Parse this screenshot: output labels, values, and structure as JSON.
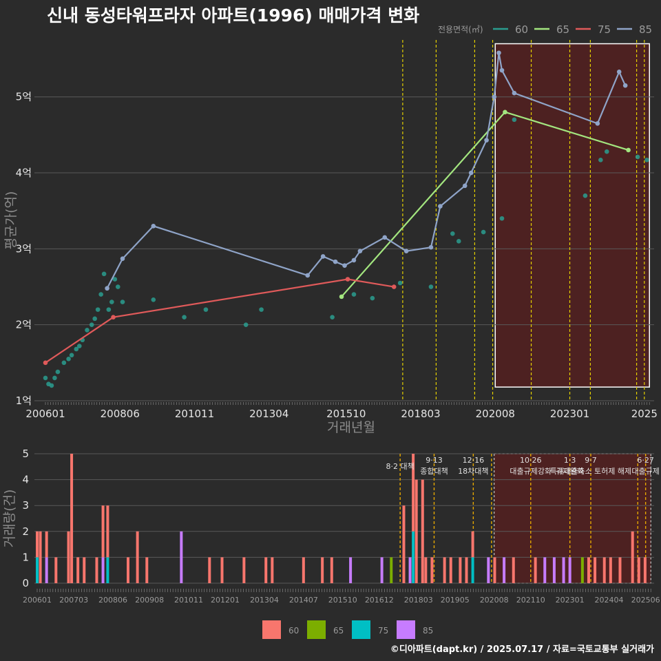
{
  "title": "신내 동성타워프라자 아파트(1996) 매매가격 변화",
  "source": "©디아파트(dapt.kr) / 2025.07.17 / 자료=국토교통부 실거래가",
  "colors": {
    "background": "#2b2b2b",
    "grid": "#5a5a5a",
    "s60": "#f8766d",
    "s65": "#7cae00",
    "s75": "#00bfc4",
    "s85": "#c77cff",
    "line60": "#2a9d8f",
    "line65": "#a3e67f",
    "line75": "#e05a5a",
    "line85": "#8fa4c8",
    "policy": "#e6d200",
    "policy_bottom": "#e6a800",
    "highlight_fill": "#5a1f1f"
  },
  "chart_data": [
    {
      "type": "line",
      "name": "price",
      "xlabel": "거래년월",
      "ylabel": "평균가(억)",
      "ylim": [
        1,
        5.75
      ],
      "yticks": [
        1,
        2,
        3,
        4,
        5
      ],
      "ytick_labels": [
        "1억",
        "2억",
        "3억",
        "4억",
        "5억"
      ],
      "xticks": [
        "200601",
        "200806",
        "201011",
        "201304",
        "201510",
        "201803",
        "202008",
        "202301",
        "202506"
      ],
      "xtick_labels": [
        "200601",
        "200806",
        "201011",
        "201304",
        "201510",
        "201803",
        "202008",
        "202301",
        "2025"
      ],
      "legend_title": "전용면적(㎡)",
      "legend": [
        "60",
        "65",
        "75",
        "85"
      ],
      "highlight": {
        "x0": "2020.08",
        "x1": "2025.08",
        "ymin": 1.18,
        "ymax": 5.7
      },
      "policy_lines": [
        "2017.08",
        "2018.09",
        "2019.12",
        "2020.07",
        "2021.10",
        "2023.01",
        "2023.09",
        "2025.03",
        "2025.06"
      ],
      "series": [
        {
          "name": "60",
          "x": [
            2006.0,
            2006.1,
            2006.2,
            2006.3,
            2006.4,
            2006.6,
            2006.75,
            2006.85,
            2007.0,
            2007.1,
            2007.2,
            2007.35,
            2007.5,
            2007.6,
            2007.7,
            2007.8,
            2007.9,
            2008.05,
            2008.15,
            2008.25,
            2008.35,
            2008.5,
            2009.5,
            2010.5,
            2011.2,
            2012.5,
            2013.0,
            2015.3,
            2016.0,
            2016.6,
            2017.5,
            2018.5,
            2019.2,
            2019.4,
            2020.2,
            2020.8,
            2021.2,
            2023.5,
            2024.0,
            2024.2,
            2025.2,
            2025.5
          ],
          "y": [
            1.3,
            1.22,
            1.2,
            1.3,
            1.38,
            1.5,
            1.55,
            1.6,
            1.68,
            1.72,
            1.8,
            1.93,
            2.0,
            2.08,
            2.2,
            2.4,
            2.67,
            2.2,
            2.3,
            2.6,
            2.5,
            2.3,
            2.33,
            2.1,
            2.2,
            2.0,
            2.2,
            2.1,
            2.4,
            2.35,
            2.55,
            2.5,
            3.2,
            3.1,
            3.22,
            3.4,
            4.7,
            3.7,
            4.17,
            4.28,
            4.21,
            4.17
          ]
        },
        {
          "name": "65",
          "x": [
            2015.6,
            2020.9,
            2024.9
          ],
          "y": [
            2.37,
            4.8,
            4.3
          ]
        },
        {
          "name": "75",
          "x": [
            2006.0,
            2008.2,
            2015.8,
            2017.3
          ],
          "y": [
            1.5,
            2.1,
            2.6,
            2.5
          ]
        },
        {
          "name": "85",
          "x": [
            2008.0,
            2008.5,
            2009.5,
            2014.5,
            2015.0,
            2015.4,
            2015.7,
            2016.0,
            2016.2,
            2017.0,
            2017.7,
            2018.5,
            2018.8,
            2019.6,
            2019.8,
            2020.3,
            2020.55,
            2020.7,
            2020.8,
            2021.2,
            2023.9,
            2024.6,
            2024.8
          ],
          "y": [
            2.48,
            2.87,
            3.3,
            2.65,
            2.9,
            2.83,
            2.78,
            2.85,
            2.97,
            3.15,
            2.97,
            3.02,
            3.56,
            3.83,
            4.0,
            4.43,
            5.0,
            5.58,
            5.35,
            5.05,
            4.65,
            5.33,
            5.15
          ]
        }
      ]
    },
    {
      "type": "bar",
      "name": "volume",
      "xlabel": "",
      "ylabel": "거래량(건)",
      "ylim": [
        0,
        5
      ],
      "yticks": [
        0,
        1,
        2,
        3,
        4,
        5
      ],
      "xtick_labels": [
        "200601",
        "200703",
        "200806",
        "200908",
        "201011",
        "201201",
        "201304",
        "201407",
        "201510",
        "201612",
        "201803",
        "201905",
        "202008",
        "202110",
        "202301",
        "202404",
        "202506"
      ],
      "legend": [
        "60",
        "65",
        "75",
        "85"
      ],
      "annotations": [
        {
          "x": "2017.08",
          "lines": [
            "8·2 대책"
          ]
        },
        {
          "x": "2018.09",
          "lines": [
            "9·13",
            "종합대책"
          ]
        },
        {
          "x": "2019.12",
          "lines": [
            "12·16",
            "18차대책"
          ]
        },
        {
          "x": "2021.10",
          "lines": [
            "10·26",
            "대출규제강화"
          ]
        },
        {
          "x": "2023.01",
          "lines": [
            "1·3",
            "규제완화"
          ]
        },
        {
          "x": "2023.09",
          "lines": [
            "9·7",
            "특례대출축소 토허제 해제"
          ]
        },
        {
          "x": "2025.06",
          "lines": [
            "6·27",
            "대출규제"
          ]
        }
      ],
      "bars": [
        {
          "x": 2006.0,
          "s60": 1,
          "s75": 1
        },
        {
          "x": 2006.1,
          "s60": 2
        },
        {
          "x": 2006.3,
          "s60": 1,
          "s85": 1
        },
        {
          "x": 2006.6,
          "s60": 1
        },
        {
          "x": 2007.0,
          "s60": 2
        },
        {
          "x": 2007.1,
          "s60": 5
        },
        {
          "x": 2007.3,
          "s60": 1
        },
        {
          "x": 2007.5,
          "s60": 1
        },
        {
          "x": 2007.9,
          "s60": 1
        },
        {
          "x": 2008.1,
          "s60": 2,
          "s85": 1
        },
        {
          "x": 2008.25,
          "s60": 2,
          "s75": 1
        },
        {
          "x": 2008.9,
          "s60": 1
        },
        {
          "x": 2009.2,
          "s60": 2
        },
        {
          "x": 2009.5,
          "s60": 1
        },
        {
          "x": 2010.6,
          "s85": 2
        },
        {
          "x": 2011.5,
          "s60": 1
        },
        {
          "x": 2011.9,
          "s60": 1
        },
        {
          "x": 2012.6,
          "s60": 1
        },
        {
          "x": 2013.3,
          "s60": 1
        },
        {
          "x": 2013.5,
          "s60": 1
        },
        {
          "x": 2014.5,
          "s60": 1
        },
        {
          "x": 2015.1,
          "s60": 1
        },
        {
          "x": 2015.4,
          "s60": 1
        },
        {
          "x": 2016.0,
          "s85": 1
        },
        {
          "x": 2017.0,
          "s85": 1
        },
        {
          "x": 2017.3,
          "s65": 1
        },
        {
          "x": 2017.7,
          "s60": 3
        },
        {
          "x": 2017.9,
          "s85": 1
        },
        {
          "x": 2018.0,
          "s60": 3,
          "s75": 2
        },
        {
          "x": 2018.1,
          "s60": 4
        },
        {
          "x": 2018.3,
          "s60": 4
        },
        {
          "x": 2018.4,
          "s60": 1
        },
        {
          "x": 2018.6,
          "s60": 1
        },
        {
          "x": 2019.0,
          "s60": 1
        },
        {
          "x": 2019.2,
          "s60": 1
        },
        {
          "x": 2019.5,
          "s60": 1
        },
        {
          "x": 2019.7,
          "s60": 1
        },
        {
          "x": 2019.9,
          "s60": 1,
          "s75": 1
        },
        {
          "x": 2020.4,
          "s85": 1
        },
        {
          "x": 2020.6,
          "s60": 1
        },
        {
          "x": 2020.9,
          "s85": 1
        },
        {
          "x": 2021.2,
          "s60": 1
        },
        {
          "x": 2021.9,
          "s60": 1
        },
        {
          "x": 2022.2,
          "s85": 1
        },
        {
          "x": 2022.5,
          "s85": 1
        },
        {
          "x": 2022.8,
          "s85": 1
        },
        {
          "x": 2023.0,
          "s85": 1
        },
        {
          "x": 2023.4,
          "s65": 1
        },
        {
          "x": 2023.6,
          "s60": 1
        },
        {
          "x": 2023.8,
          "s60": 1
        },
        {
          "x": 2024.1,
          "s60": 1
        },
        {
          "x": 2024.3,
          "s60": 1
        },
        {
          "x": 2024.6,
          "s60": 1
        },
        {
          "x": 2025.0,
          "s60": 2
        },
        {
          "x": 2025.2,
          "s60": 1
        },
        {
          "x": 2025.4,
          "s60": 1
        }
      ]
    }
  ]
}
